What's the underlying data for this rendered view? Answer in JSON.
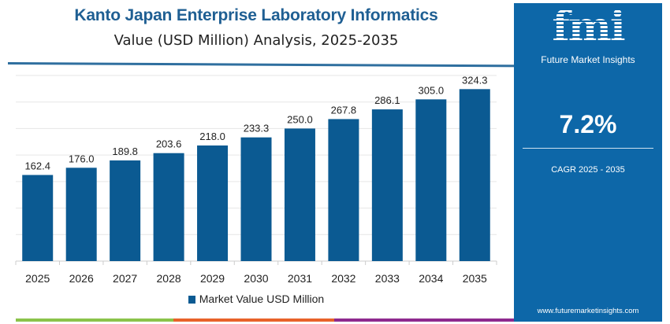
{
  "header": {
    "title": "Kanto Japan Enterprise Laboratory Informatics",
    "subtitle": "Value (USD Million) Analysis, 2025-2035"
  },
  "chart_data": {
    "type": "bar",
    "categories": [
      "2025",
      "2026",
      "2027",
      "2028",
      "2029",
      "2030",
      "2031",
      "2032",
      "2033",
      "2034",
      "2035"
    ],
    "series": [
      {
        "name": "Market Value USD Million",
        "values": [
          162.4,
          176.0,
          189.8,
          203.6,
          218.0,
          233.3,
          250.0,
          267.8,
          286.1,
          305.0,
          324.3
        ]
      }
    ],
    "data_labels": [
      "162.4",
      "176.0",
      "189.8",
      "203.6",
      "218.0",
      "233.3",
      "250.0",
      "267.8",
      "286.1",
      "305.0",
      "324.3"
    ],
    "ylim": [
      0,
      350
    ],
    "grid": true,
    "legend": "bottom",
    "bar_color": "#0b5a92"
  },
  "legend": {
    "label": "Market Value USD Million"
  },
  "panel": {
    "logo": "fmi",
    "brand": "Future Market Insights",
    "cagr_value": "7.2%",
    "cagr_label": "CAGR 2025 - 2035",
    "url": "www.futuremarketinsights.com",
    "color": "#0d67a8"
  },
  "stripe_colors": [
    "#8bc34a",
    "#e8622a",
    "#8e2a8e"
  ]
}
